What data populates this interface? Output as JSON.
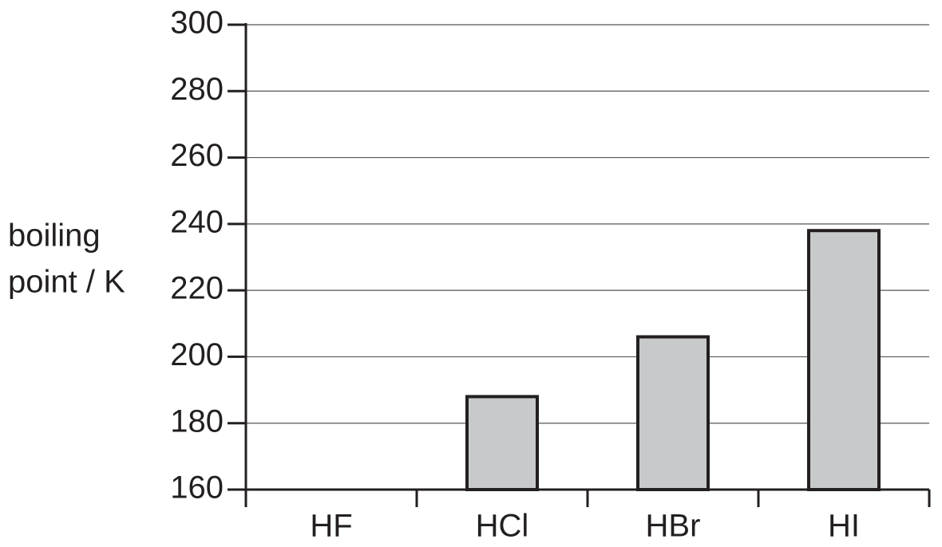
{
  "chart_data": {
    "type": "bar",
    "y_label": [
      "boiling",
      "point / K"
    ],
    "categories": [
      "HF",
      "HCl",
      "HBr",
      "HI"
    ],
    "values": [
      null,
      188,
      206,
      238
    ],
    "color": "#c8c9cb",
    "ylim": [
      160,
      300
    ],
    "yticks": [
      160,
      180,
      200,
      220,
      240,
      260,
      280,
      300
    ],
    "grid": true
  }
}
